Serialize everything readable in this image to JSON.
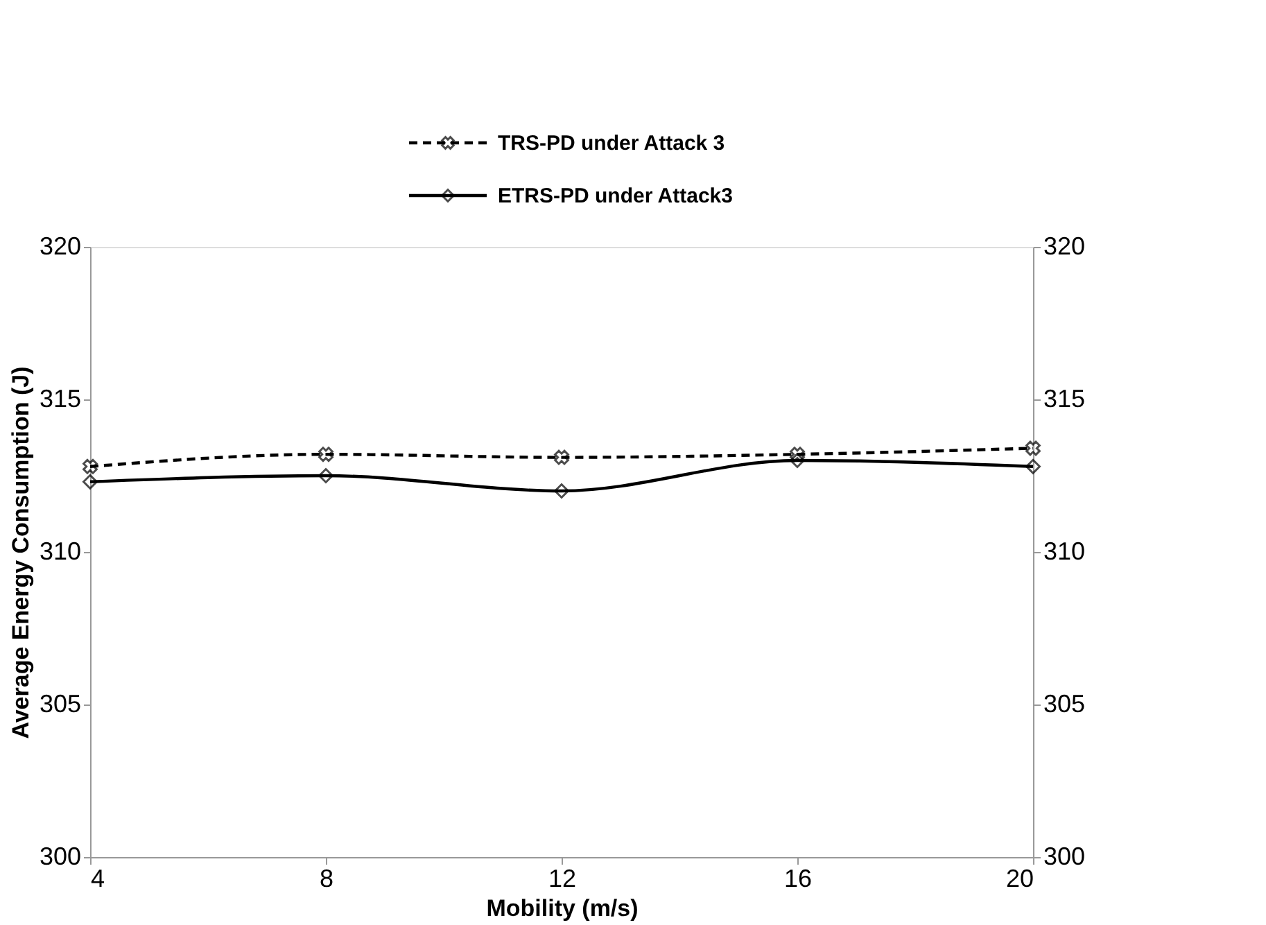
{
  "chart_data": {
    "type": "line",
    "x": [
      4,
      8,
      12,
      16,
      20
    ],
    "series": [
      {
        "name": "TRS-PD under Attack 3",
        "color": "#000000",
        "values": [
          312.8,
          313.2,
          313.1,
          313.2,
          313.4
        ],
        "line_style": "dashed",
        "marker": "cross"
      },
      {
        "name": "ETRS-PD  under Attack3",
        "color": "#000000",
        "values": [
          312.3,
          312.5,
          312.0,
          313.0,
          312.8
        ],
        "line_style": "solid",
        "marker": "diamond"
      }
    ],
    "xlabel": "Mobility (m/s)",
    "ylabel": "Average Energy Consumption (J)",
    "xlim": [
      4,
      20
    ],
    "xticks": [
      4,
      8,
      12,
      16,
      20
    ],
    "ylim": [
      300,
      320
    ],
    "yticks": [
      300,
      305,
      310,
      315,
      320
    ],
    "y2lim": [
      300,
      320
    ],
    "y2ticks": [
      300,
      305,
      310,
      315,
      320
    ],
    "grid": false,
    "legend": "top"
  }
}
